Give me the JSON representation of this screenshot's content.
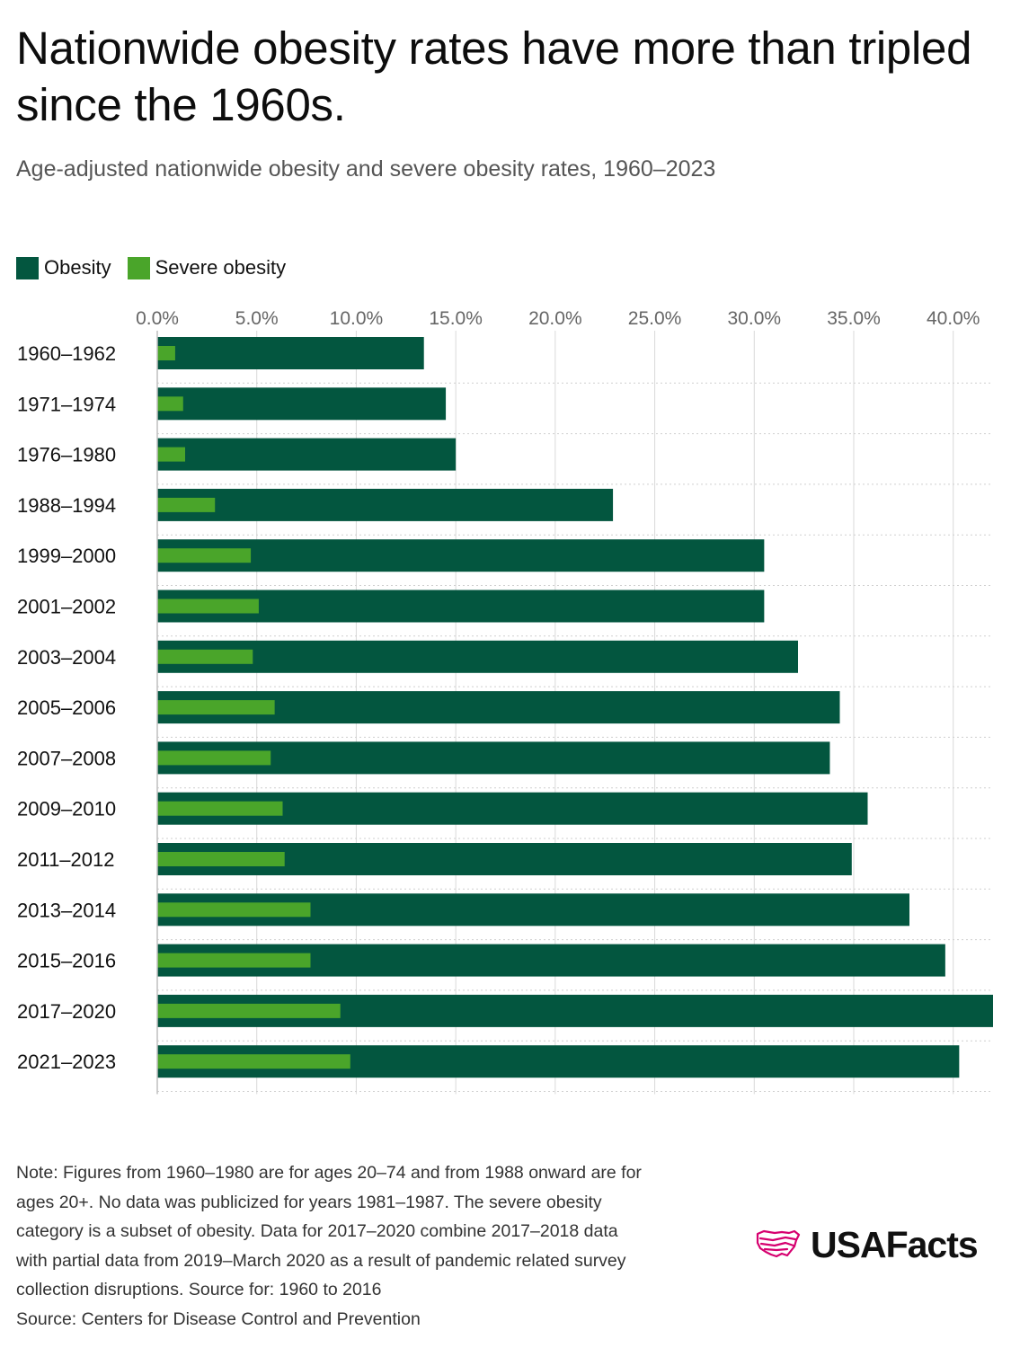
{
  "title": "Nationwide obesity rates have more than tripled since the 1960s.",
  "subtitle": "Age-adjusted nationwide obesity and severe obesity rates, 1960–2023",
  "legend": {
    "obesity": "Obesity",
    "severe": "Severe obesity"
  },
  "colors": {
    "obesity": "#03563f",
    "severe": "#4aa52a",
    "grid": "#d9d9d9",
    "tick": "#666666",
    "brand": "#d6006f"
  },
  "chart_data": {
    "type": "bar",
    "orientation": "horizontal",
    "categories": [
      "1960–1962",
      "1971–1974",
      "1976–1980",
      "1988–1994",
      "1999–2000",
      "2001–2002",
      "2003–2004",
      "2005–2006",
      "2007–2008",
      "2009–2010",
      "2011–2012",
      "2013–2014",
      "2015–2016",
      "2017–2020",
      "2021–2023"
    ],
    "series": [
      {
        "name": "Obesity",
        "values": [
          13.4,
          14.5,
          15.0,
          22.9,
          30.5,
          30.5,
          32.2,
          34.3,
          33.8,
          35.7,
          34.9,
          37.8,
          39.6,
          42.0,
          40.3
        ]
      },
      {
        "name": "Severe obesity",
        "values": [
          0.9,
          1.3,
          1.4,
          2.9,
          4.7,
          5.1,
          4.8,
          5.9,
          5.7,
          6.3,
          6.4,
          7.7,
          7.7,
          9.2,
          9.7
        ]
      }
    ],
    "x_ticks": [
      "0.0%",
      "5.0%",
      "10.0%",
      "15.0%",
      "20.0%",
      "25.0%",
      "30.0%",
      "35.0%",
      "40.0%"
    ],
    "xlim": [
      0,
      42
    ],
    "legend_position": "top-left",
    "grid": true
  },
  "note": {
    "lines": [
      "Note: Figures from 1960–1980 are for ages 20–74 and from 1988 onward are for",
      "ages 20+. No data was publicized for years 1981–1987. The severe obesity",
      "category is a subset of obesity. Data for 2017–2020 combine 2017–2018 data",
      "with partial data from 2019–March 2020 as a result of pandemic related survey",
      "collection disruptions. Source for: 1960 to 2016"
    ],
    "source": "Source: Centers for Disease Control and Prevention"
  },
  "brand": {
    "name": "USAFacts",
    "icon": "us-map-icon"
  }
}
